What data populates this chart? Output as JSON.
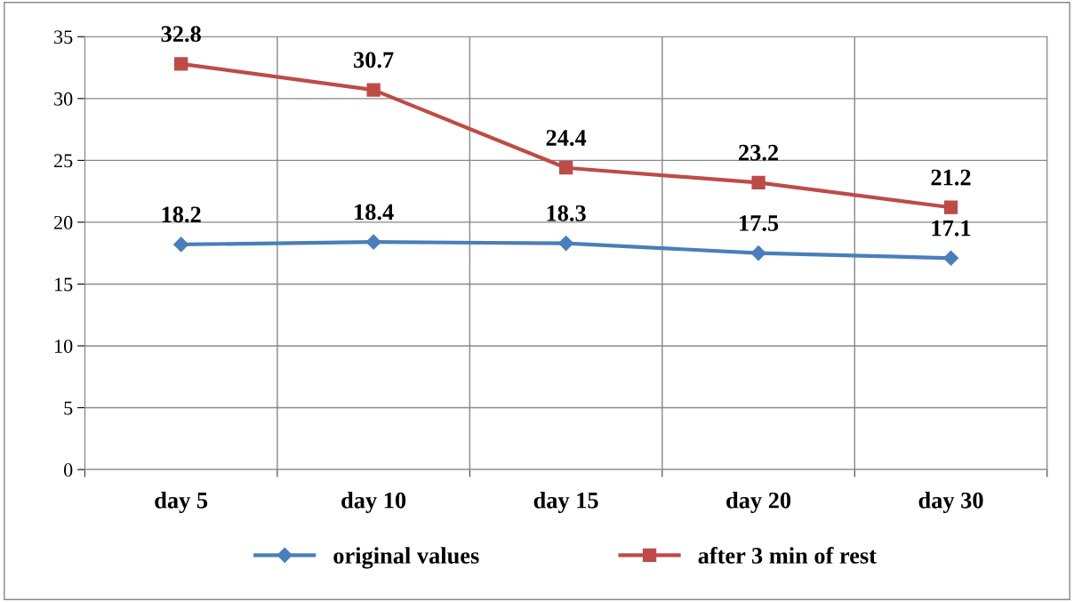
{
  "chart_data": {
    "type": "line",
    "categories": [
      "day 5",
      "day 10",
      "day 15",
      "day 20",
      "day 30"
    ],
    "series": [
      {
        "name": "original values",
        "color": "#4a7ebb",
        "values": [
          18.2,
          18.4,
          18.3,
          17.5,
          17.1
        ]
      },
      {
        "name": "after 3 min of rest",
        "color": "#be4b48",
        "values": [
          32.8,
          30.7,
          24.4,
          23.2,
          21.2
        ]
      }
    ],
    "ylim": [
      0,
      35
    ],
    "yticks": [
      0,
      5,
      10,
      15,
      20,
      25,
      30,
      35
    ],
    "grid": true,
    "legend": "bottom",
    "data_labels": true,
    "marker": [
      "diamond",
      "square"
    ],
    "line_style": "solid"
  }
}
